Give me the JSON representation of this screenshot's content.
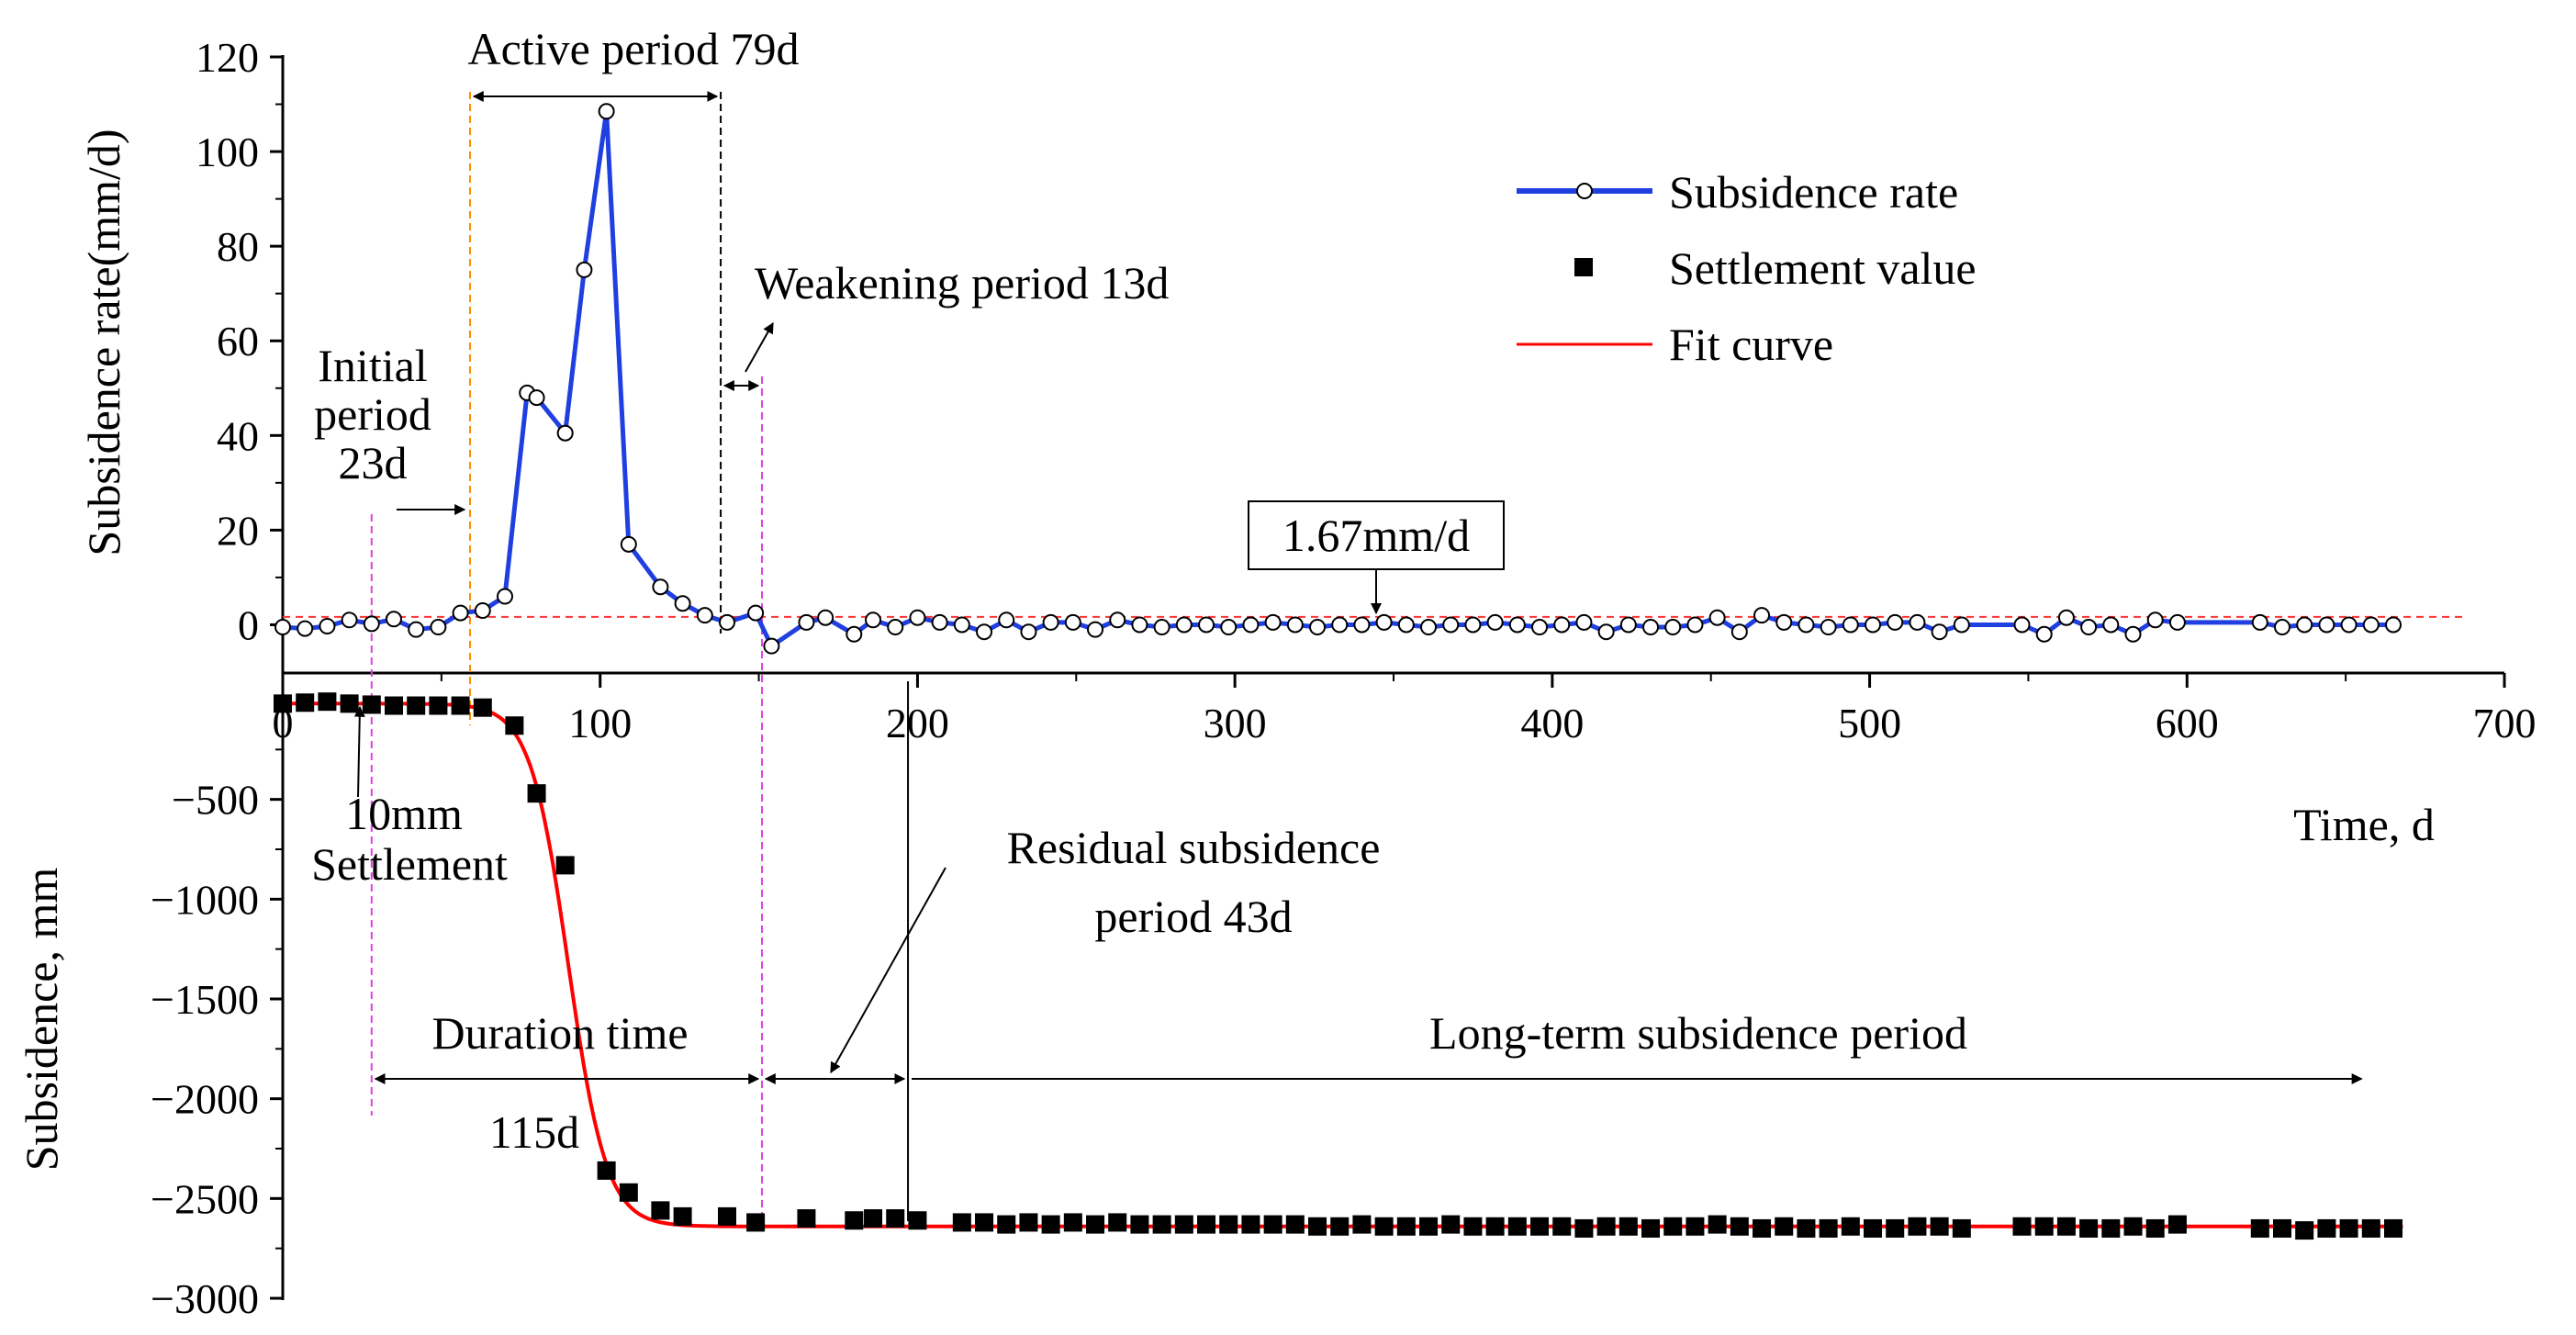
{
  "chart_data": [
    {
      "type": "line",
      "panel": "top",
      "title": "",
      "xlabel": "Time, d",
      "ylabel": "Subsidence rate(mm/d)",
      "xlim": [
        0,
        700
      ],
      "ylim": [
        -10,
        120
      ],
      "xticks": [
        0,
        100,
        200,
        300,
        400,
        500,
        600,
        700
      ],
      "yticks": [
        0,
        20,
        40,
        60,
        80,
        100,
        120
      ],
      "xtick_labels": [
        "0",
        "100",
        "200",
        "300",
        "400",
        "500",
        "600",
        "700"
      ],
      "ytick_labels": [
        "0",
        "20",
        "40",
        "60",
        "80",
        "100",
        "120"
      ],
      "reference_line": {
        "y": 1.67,
        "label": "1.67mm/d",
        "color": "#ff3333"
      },
      "series": [
        {
          "name": "Subsidence rate",
          "color": "#1f3fe0",
          "marker": "open-circle",
          "x": [
            0,
            7,
            14,
            21,
            28,
            35,
            42,
            49,
            56,
            63,
            70,
            77,
            80,
            89,
            95,
            102,
            109,
            119,
            126,
            133,
            140,
            149,
            154,
            165,
            171,
            180,
            186,
            193,
            200,
            207,
            214,
            221,
            228,
            235,
            242,
            249,
            256,
            263,
            270,
            277,
            284,
            291,
            298,
            305,
            312,
            319,
            326,
            333,
            340,
            347,
            354,
            361,
            368,
            375,
            382,
            389,
            396,
            403,
            410,
            417,
            424,
            431,
            438,
            445,
            452,
            459,
            466,
            473,
            480,
            487,
            494,
            501,
            508,
            515,
            522,
            529,
            548,
            555,
            562,
            569,
            576,
            583,
            590,
            597,
            623,
            630,
            637,
            644,
            651,
            658,
            665
          ],
          "values": [
            -0.5,
            -0.8,
            -0.3,
            1.0,
            0.2,
            1.2,
            -1.0,
            -0.5,
            2.5,
            3.0,
            6.0,
            49,
            48,
            40.5,
            75,
            108.5,
            17,
            8,
            4.5,
            2,
            0.5,
            2.5,
            -4.5,
            0.5,
            1.5,
            -2,
            1,
            -0.5,
            1.5,
            0.5,
            0,
            -1.5,
            1,
            -1.5,
            0.5,
            0.5,
            -1,
            1,
            0,
            -0.5,
            0,
            0,
            -0.5,
            0,
            0.5,
            0,
            -0.5,
            0,
            0,
            0.5,
            0,
            -0.5,
            0,
            0,
            0.5,
            0,
            -0.5,
            0,
            0.5,
            -1.5,
            0,
            -0.5,
            -0.5,
            0,
            1.5,
            -1.5,
            2,
            0.5,
            0,
            -0.5,
            0,
            0,
            0.5,
            0.5,
            -1.5,
            0,
            0,
            -2,
            1.5,
            -0.5,
            0,
            -2,
            1,
            0.5,
            0.5,
            -0.5,
            0,
            0,
            0,
            0,
            0
          ]
        }
      ],
      "legend": [
        {
          "name": "Subsidence rate",
          "style": "line-open-circle",
          "color": "#1f3fe0"
        },
        {
          "name": "Settlement value",
          "style": "filled-square",
          "color": "#000000"
        },
        {
          "name": "Fit curve",
          "style": "line",
          "color": "#ff0000"
        }
      ],
      "legend_position": "top-right",
      "annotations": [
        {
          "text": "Active period 79d",
          "span_x": [
            59,
            138
          ]
        },
        {
          "text": "Weakening period 13d",
          "span_x": [
            138,
            151
          ]
        },
        {
          "text": "Initial",
          "span_x": [
            36,
            59
          ]
        },
        {
          "text": "period",
          "span_x": [
            36,
            59
          ]
        },
        {
          "text": "23d",
          "span_x": [
            36,
            59
          ]
        }
      ]
    },
    {
      "type": "scatter",
      "panel": "bottom",
      "title": "",
      "xlabel": "Time, d",
      "ylabel": "Subsidence, mm",
      "xlim": [
        0,
        700
      ],
      "ylim": [
        -3000,
        0
      ],
      "yticks": [
        -3000,
        -2500,
        -2000,
        -1500,
        -1000,
        -500
      ],
      "ytick_labels": [
        "−3000",
        "−2500",
        "−2000",
        "−1500",
        "−1000",
        "−500"
      ],
      "series": [
        {
          "name": "Settlement value",
          "color": "#000000",
          "marker": "filled-square",
          "x": [
            0,
            7,
            14,
            21,
            28,
            35,
            42,
            49,
            56,
            63,
            73,
            80,
            89,
            102,
            109,
            119,
            126,
            140,
            149,
            165,
            180,
            186,
            193,
            200,
            214,
            221,
            228,
            235,
            242,
            249,
            256,
            263,
            270,
            277,
            284,
            291,
            298,
            305,
            312,
            319,
            326,
            333,
            340,
            347,
            354,
            361,
            368,
            375,
            382,
            389,
            396,
            403,
            410,
            417,
            424,
            431,
            438,
            445,
            452,
            459,
            466,
            473,
            480,
            487,
            494,
            501,
            508,
            515,
            522,
            529,
            548,
            555,
            562,
            569,
            576,
            583,
            590,
            597,
            623,
            630,
            637,
            644,
            651,
            658,
            665
          ],
          "values": [
            -20,
            -15,
            -10,
            -20,
            -25,
            -30,
            -30,
            -30,
            -30,
            -40,
            -130,
            -470,
            -830,
            -2360,
            -2470,
            -2560,
            -2590,
            -2590,
            -2620,
            -2600,
            -2610,
            -2600,
            -2600,
            -2610,
            -2620,
            -2620,
            -2630,
            -2620,
            -2630,
            -2620,
            -2630,
            -2620,
            -2630,
            -2630,
            -2630,
            -2630,
            -2630,
            -2630,
            -2630,
            -2630,
            -2640,
            -2640,
            -2630,
            -2640,
            -2640,
            -2640,
            -2630,
            -2640,
            -2640,
            -2640,
            -2640,
            -2640,
            -2650,
            -2640,
            -2640,
            -2650,
            -2640,
            -2640,
            -2630,
            -2640,
            -2650,
            -2640,
            -2650,
            -2650,
            -2640,
            -2650,
            -2650,
            -2640,
            -2640,
            -2650,
            -2640,
            -2640,
            -2640,
            -2650,
            -2650,
            -2640,
            -2650,
            -2630,
            -2650,
            -2650,
            -2660,
            -2650,
            -2650,
            -2650,
            -2650
          ]
        },
        {
          "name": "Fit curve",
          "color": "#ff0000",
          "model": "boltzmann",
          "params": {
            "A1": -20,
            "A2": -2640,
            "x0": 90,
            "dx": 6
          }
        }
      ],
      "annotations": [
        {
          "text": "10mm"
        },
        {
          "text": "Settlement"
        },
        {
          "text": "Duration time",
          "span_x": [
            28,
            151
          ]
        },
        {
          "text": "115d",
          "span_x": [
            28,
            151
          ]
        },
        {
          "text": "Residual subsidence",
          "span_x": [
            151,
            194
          ]
        },
        {
          "text": "period 43d",
          "span_x": [
            151,
            194
          ]
        },
        {
          "text": "Long-term subsidence period",
          "span_x": [
            194,
            655
          ]
        }
      ]
    }
  ]
}
